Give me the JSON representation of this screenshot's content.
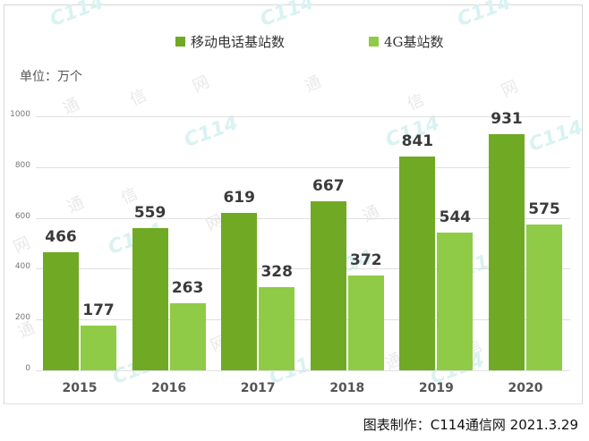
{
  "legend": {
    "items": [
      {
        "label": "移动电话基站数",
        "color": "#70a923"
      },
      {
        "label": "4G基站数",
        "color": "#8fcb47"
      }
    ]
  },
  "unit_label": "单位：万个",
  "footer": "图表制作：C114通信网  2021.3.29",
  "watermark": {
    "chars": [
      "通",
      "信",
      "网"
    ],
    "logo": "C114"
  },
  "chart_data": {
    "type": "bar",
    "title": "",
    "xlabel": "",
    "ylabel": "单位：万个",
    "categories": [
      "2015",
      "2016",
      "2017",
      "2018",
      "2019",
      "2020"
    ],
    "series": [
      {
        "name": "移动电话基站数",
        "color": "#70a923",
        "values": [
          466,
          559,
          619,
          667,
          841,
          931
        ]
      },
      {
        "name": "4G基站数",
        "color": "#8fcb47",
        "values": [
          177,
          263,
          328,
          372,
          544,
          575
        ]
      }
    ],
    "ylim": [
      0,
      1000
    ],
    "yticks": [
      0,
      200,
      400,
      600,
      800,
      1000
    ],
    "grid": true,
    "legend_position": "top",
    "data_labels": true
  }
}
